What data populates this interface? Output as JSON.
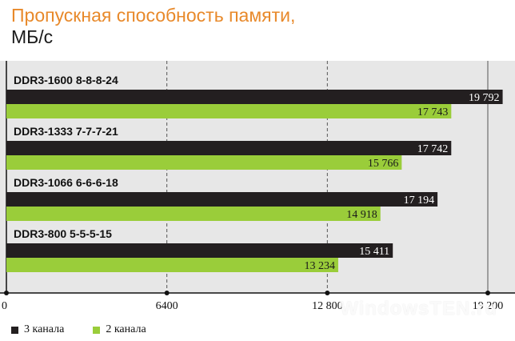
{
  "title_line1": "Пропускная способность памяти,",
  "title_line2": "МБ/с",
  "watermark": "WindowsTEN.ru",
  "colors": {
    "title": "#e8892a",
    "series_dark": "#231f20",
    "series_green": "#9acd3a",
    "plot_bg": "#e7e7e7"
  },
  "chart_data": {
    "type": "bar",
    "orientation": "horizontal",
    "title": "Пропускная способность памяти, МБ/с",
    "categories": [
      "DDR3-1600 8-8-8-24",
      "DDR3-1333 7-7-7-21",
      "DDR3-1066 6-6-6-18",
      "DDR3-800 5-5-5-15"
    ],
    "series": [
      {
        "name": "3 канала",
        "values": [
          19792,
          17742,
          17194,
          15411
        ],
        "labels": [
          "19 792",
          "17 742",
          "17 194",
          "15 411"
        ]
      },
      {
        "name": "2 канала",
        "values": [
          17743,
          15766,
          14918,
          13234
        ],
        "labels": [
          "17 743",
          "15 766",
          "14 918",
          "13 234"
        ]
      }
    ],
    "xlim": [
      0,
      19200
    ],
    "xticks": [
      0,
      6400,
      12800,
      19200
    ],
    "xtick_labels": [
      "0",
      "6400",
      "12 800",
      "19 200"
    ],
    "grid": true,
    "legend_position": "bottom-left"
  }
}
